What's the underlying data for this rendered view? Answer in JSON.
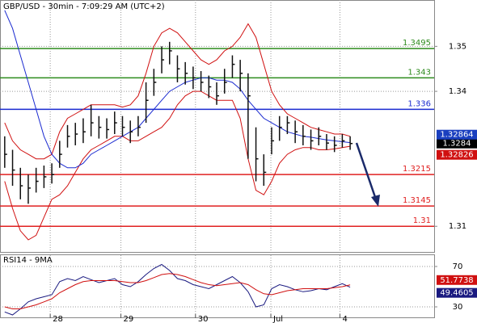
{
  "chart_data": [
    {
      "type": "hlc",
      "title": "GBP/USD - 30min - 7:09:29 AM (UTC+2)",
      "ylim": [
        1.3043,
        1.3603
      ],
      "yticks": [
        1.31,
        1.34,
        1.35
      ],
      "grid": true,
      "xlim": [
        -0.6,
        54.7
      ],
      "xticks": [
        {
          "value": 5.8,
          "label": "28"
        },
        {
          "value": 14.8,
          "label": "29"
        },
        {
          "value": 24.3,
          "label": "30"
        },
        {
          "value": 33.9,
          "label": "Jul"
        },
        {
          "value": 42.7,
          "label": "4"
        }
      ],
      "bar_color": "#111111",
      "close": [
        1.326,
        1.3225,
        1.319,
        1.3185,
        1.32,
        1.321,
        1.3215,
        1.326,
        1.33,
        1.3305,
        1.331,
        1.333,
        1.332,
        1.3315,
        1.333,
        1.332,
        1.331,
        1.332,
        1.338,
        1.342,
        1.347,
        1.349,
        1.345,
        1.344,
        1.343,
        1.342,
        1.341,
        1.339,
        1.342,
        1.346,
        1.344,
        1.339,
        1.325,
        1.322,
        1.329,
        1.332,
        1.333,
        1.331,
        1.33,
        1.329,
        1.33,
        1.3285,
        1.328,
        1.329,
        1.3284
      ],
      "high": [
        1.33,
        1.327,
        1.323,
        1.3215,
        1.323,
        1.3235,
        1.324,
        1.329,
        1.3325,
        1.333,
        1.334,
        1.337,
        1.3345,
        1.334,
        1.3355,
        1.3345,
        1.3335,
        1.3345,
        1.342,
        1.345,
        1.35,
        1.351,
        1.348,
        1.3465,
        1.3455,
        1.3445,
        1.3435,
        1.342,
        1.345,
        1.348,
        1.347,
        1.344,
        1.332,
        1.326,
        1.332,
        1.3345,
        1.3345,
        1.3335,
        1.3325,
        1.3315,
        1.332,
        1.3305,
        1.33,
        1.3305,
        1.33
      ],
      "low": [
        1.323,
        1.319,
        1.316,
        1.315,
        1.3175,
        1.3185,
        1.3195,
        1.323,
        1.3275,
        1.328,
        1.3285,
        1.33,
        1.3295,
        1.3295,
        1.3305,
        1.33,
        1.3285,
        1.33,
        1.333,
        1.339,
        1.344,
        1.346,
        1.342,
        1.3415,
        1.3405,
        1.34,
        1.3385,
        1.337,
        1.3395,
        1.343,
        1.34,
        1.325,
        1.32,
        1.319,
        1.326,
        1.329,
        1.3305,
        1.3285,
        1.328,
        1.327,
        1.328,
        1.327,
        1.3265,
        1.3275,
        1.327
      ],
      "lines": [
        {
          "name": "bb-upper",
          "color": "#d01010",
          "values": [
            1.333,
            1.329,
            1.327,
            1.326,
            1.325,
            1.325,
            1.326,
            1.331,
            1.334,
            1.335,
            1.336,
            1.337,
            1.337,
            1.337,
            1.337,
            1.3365,
            1.337,
            1.339,
            1.344,
            1.35,
            1.353,
            1.354,
            1.353,
            1.351,
            1.349,
            1.347,
            1.346,
            1.347,
            1.349,
            1.35,
            1.352,
            1.355,
            1.352,
            1.346,
            1.34,
            1.337,
            1.335,
            1.334,
            1.333,
            1.332,
            1.3315,
            1.331,
            1.3305,
            1.3305,
            1.33
          ]
        },
        {
          "name": "bb-lower",
          "color": "#d01010",
          "values": [
            1.32,
            1.314,
            1.309,
            1.307,
            1.308,
            1.312,
            1.316,
            1.317,
            1.319,
            1.322,
            1.325,
            1.327,
            1.328,
            1.329,
            1.33,
            1.33,
            1.329,
            1.329,
            1.33,
            1.331,
            1.332,
            1.334,
            1.337,
            1.339,
            1.34,
            1.34,
            1.339,
            1.338,
            1.338,
            1.338,
            1.334,
            1.325,
            1.318,
            1.317,
            1.32,
            1.324,
            1.326,
            1.327,
            1.3275,
            1.3275,
            1.327,
            1.327,
            1.3272,
            1.3275,
            1.3278
          ]
        },
        {
          "name": "moving-average",
          "color": "#1a2ad0",
          "values": [
            1.358,
            1.354,
            1.348,
            1.342,
            1.336,
            1.33,
            1.326,
            1.324,
            1.323,
            1.323,
            1.324,
            1.326,
            1.327,
            1.328,
            1.329,
            1.33,
            1.331,
            1.332,
            1.334,
            1.336,
            1.338,
            1.34,
            1.341,
            1.342,
            1.3425,
            1.343,
            1.343,
            1.3425,
            1.3425,
            1.342,
            1.3405,
            1.338,
            1.336,
            1.334,
            1.333,
            1.332,
            1.331,
            1.3305,
            1.33,
            1.3298,
            1.3295,
            1.3292,
            1.329,
            1.3288,
            1.3286
          ]
        }
      ],
      "levels": [
        {
          "value": 1.3495,
          "color": "#2e8b1e"
        },
        {
          "value": 1.343,
          "color": "#2e8b1e"
        },
        {
          "value": 1.336,
          "color": "#1a2ad0"
        },
        {
          "value": 1.3215,
          "color": "#e02020"
        },
        {
          "value": 1.3145,
          "color": "#e02020"
        },
        {
          "value": 1.31,
          "color": "#e02020"
        }
      ],
      "markers": [
        {
          "value": 1.32864,
          "color": "#1a3fbf"
        },
        {
          "value": 1.32826,
          "color": "#d01010"
        }
      ]
    },
    {
      "type": "line",
      "title": "RSI14 - 9MA",
      "ylim": [
        18.8,
        81.2
      ],
      "yticks": [
        30,
        70
      ],
      "grid": true,
      "xlim": [
        -0.6,
        54.7
      ],
      "series": [
        {
          "name": "RSI14",
          "color": "#1a1a80",
          "values": [
            25,
            22,
            28,
            35,
            38,
            40,
            42,
            55,
            58,
            56,
            60,
            57,
            54,
            56,
            58,
            52,
            50,
            55,
            62,
            68,
            72,
            66,
            58,
            56,
            52,
            50,
            48,
            52,
            56,
            60,
            54,
            45,
            30,
            32,
            48,
            52,
            50,
            47,
            45,
            46,
            48,
            47,
            50,
            53,
            49.4605
          ]
        },
        {
          "name": "9MA",
          "color": "#d01010",
          "values": [
            30,
            28,
            28,
            30,
            32,
            35,
            38,
            44,
            48,
            52,
            55,
            56,
            56,
            56,
            56,
            55,
            54,
            54,
            56,
            59,
            62,
            63,
            62,
            60,
            57,
            54,
            52,
            51,
            52,
            53,
            54,
            52,
            47,
            43,
            42,
            44,
            46,
            47,
            48,
            48,
            48,
            48,
            49,
            50,
            51.7738
          ]
        }
      ]
    }
  ]
}
